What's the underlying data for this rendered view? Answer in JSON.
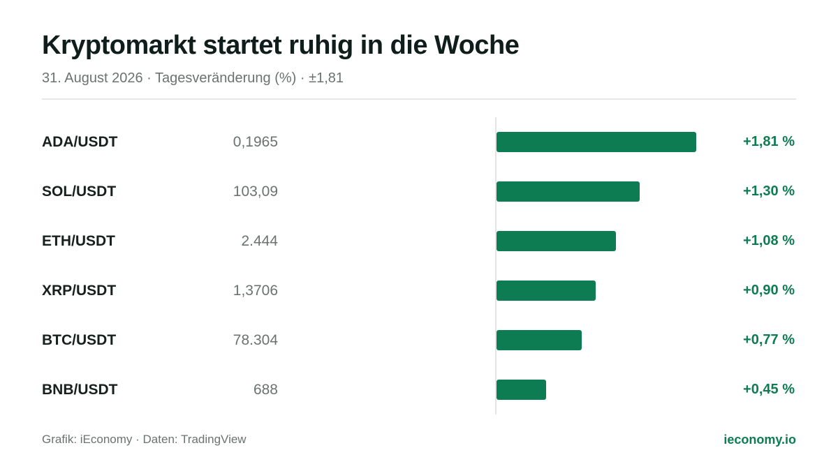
{
  "header": {
    "title": "Kryptomarkt startet ruhig in die Woche",
    "subtitle": "31. August 2026 · Tagesveränderung (%) · ±1,81"
  },
  "footer": {
    "source": "Grafik: iEconomy · Daten: TradingView",
    "brand": "ieconomy.io"
  },
  "colors": {
    "bar": "#0e7c52",
    "positive_text": "#0e7c52"
  },
  "chart_data": {
    "type": "bar",
    "orientation": "horizontal",
    "title": "Kryptomarkt startet ruhig in die Woche",
    "subtitle": "31. August 2026 · Tagesveränderung (%) · ±1,81",
    "xlim": [
      0,
      1.81
    ],
    "grid": false,
    "categories": [
      "ADA/USDT",
      "SOL/USDT",
      "ETH/USDT",
      "XRP/USDT",
      "BTC/USDT",
      "BNB/USDT"
    ],
    "values": [
      1.81,
      1.3,
      1.08,
      0.9,
      0.77,
      0.45
    ],
    "rows": [
      {
        "pair": "ADA/USDT",
        "price": "0,1965",
        "change": 1.81,
        "change_label": "+1,81 %"
      },
      {
        "pair": "SOL/USDT",
        "price": "103,09",
        "change": 1.3,
        "change_label": "+1,30 %"
      },
      {
        "pair": "ETH/USDT",
        "price": "2.444",
        "change": 1.08,
        "change_label": "+1,08 %"
      },
      {
        "pair": "XRP/USDT",
        "price": "1,3706",
        "change": 0.9,
        "change_label": "+0,90 %"
      },
      {
        "pair": "BTC/USDT",
        "price": "78.304",
        "change": 0.77,
        "change_label": "+0,77 %"
      },
      {
        "pair": "BNB/USDT",
        "price": "688",
        "change": 0.45,
        "change_label": "+0,45 %"
      }
    ]
  }
}
